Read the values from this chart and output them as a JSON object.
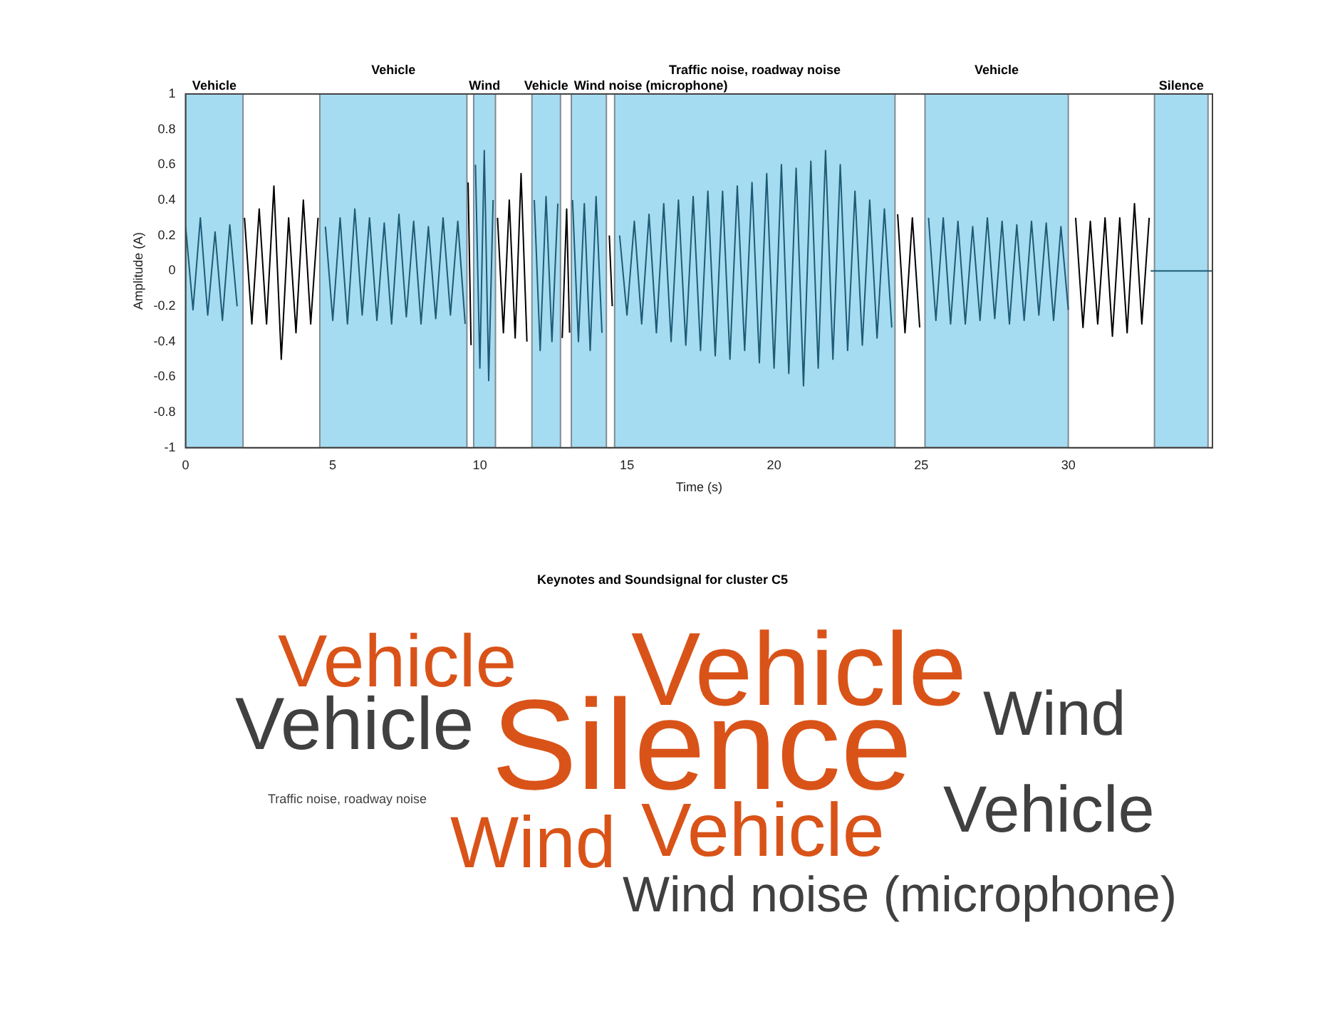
{
  "chart_data": [
    {
      "type": "line",
      "xlabel": "Time (s)",
      "ylabel": "Amplitude (A)",
      "xlim": [
        0,
        34.9
      ],
      "xticks": [
        0,
        5,
        10,
        15,
        20,
        25,
        30
      ],
      "ylim": [
        -1,
        1
      ],
      "yticks": [
        -1,
        -0.8,
        -0.6,
        -0.4,
        -0.2,
        0,
        0.2,
        0.4,
        0.6,
        0.8,
        1
      ],
      "grid": false,
      "legend": false,
      "marker": "none",
      "line_style": "solid",
      "bands": [
        {
          "axis": "x",
          "from": 0,
          "to": 1.95,
          "label": "Vehicle",
          "color": "#a6dcf2"
        },
        {
          "axis": "x",
          "from": 4.56,
          "to": 9.56,
          "label": "Vehicle",
          "color": "#a6dcf2"
        },
        {
          "axis": "x",
          "from": 9.79,
          "to": 10.53,
          "label": "Wind",
          "color": "#a6dcf2"
        },
        {
          "axis": "x",
          "from": 11.77,
          "to": 12.74,
          "label": "Vehicle",
          "color": "#a6dcf2"
        },
        {
          "axis": "x",
          "from": 13.11,
          "to": 14.3,
          "label": "Wind noise (microphone)",
          "color": "#a6dcf2"
        },
        {
          "axis": "x",
          "from": 14.58,
          "to": 24.11,
          "label": "Traffic noise, roadway noise",
          "color": "#a6dcf2"
        },
        {
          "axis": "x",
          "from": 25.13,
          "to": 30.0,
          "label": "Vehicle",
          "color": "#a6dcf2"
        },
        {
          "axis": "x",
          "from": 32.93,
          "to": 34.75,
          "label": "Silence",
          "color": "#a6dcf2"
        }
      ],
      "series": [
        {
          "color": "#1e5b74",
          "x": [
            0,
            0.25,
            0.5,
            0.75,
            1,
            1.25,
            1.5,
            1.75,
            1.9,
            4.75,
            5,
            5.25,
            5.5,
            5.75,
            6,
            6.25,
            6.5,
            6.75,
            7,
            7.25,
            7.5,
            7.75,
            8,
            8.25,
            8.5,
            8.75,
            9,
            9.25,
            9.5,
            9.6,
            9.85,
            10,
            10.15,
            10.3,
            10.45,
            10.5,
            11.85,
            12.05,
            12.25,
            12.45,
            12.65,
            12.7,
            13.15,
            13.35,
            13.55,
            13.75,
            13.95,
            14.15,
            14.2,
            14.75,
            15,
            15.25,
            15.5,
            15.75,
            16,
            16.25,
            16.5,
            16.75,
            17,
            17.25,
            17.5,
            17.75,
            18,
            18.25,
            18.5,
            18.75,
            19,
            19.25,
            19.5,
            19.75,
            20,
            20.25,
            20.5,
            20.75,
            21,
            21.25,
            21.5,
            21.75,
            22,
            22.25,
            22.5,
            22.75,
            23,
            23.25,
            23.5,
            23.75,
            24,
            24.05,
            25.25,
            25.5,
            25.75,
            26,
            26.25,
            26.5,
            26.75,
            27,
            27.25,
            27.5,
            27.75,
            28,
            28.25,
            28.5,
            28.75,
            29,
            29.25,
            29.5,
            29.75,
            30,
            30.1,
            32.8,
            34.9
          ],
          "values": [
            0.25,
            -0.22,
            0.3,
            -0.25,
            0.22,
            -0.28,
            0.26,
            -0.2,
            null,
            0.25,
            -0.28,
            0.3,
            -0.3,
            0.35,
            -0.25,
            0.3,
            -0.28,
            0.27,
            -0.3,
            0.32,
            -0.26,
            0.28,
            -0.3,
            0.25,
            -0.27,
            0.3,
            -0.25,
            0.28,
            -0.3,
            null,
            0.6,
            -0.55,
            0.68,
            -0.62,
            0.4,
            null,
            0.4,
            -0.45,
            0.42,
            -0.4,
            0.38,
            null,
            0.4,
            -0.4,
            0.38,
            -0.45,
            0.42,
            -0.35,
            null,
            0.2,
            -0.25,
            0.28,
            -0.3,
            0.32,
            -0.35,
            0.38,
            -0.4,
            0.4,
            -0.42,
            0.42,
            -0.45,
            0.45,
            -0.48,
            0.45,
            -0.5,
            0.48,
            -0.45,
            0.5,
            -0.52,
            0.55,
            -0.55,
            0.6,
            -0.58,
            0.58,
            -0.65,
            0.62,
            -0.55,
            0.68,
            -0.5,
            0.6,
            -0.45,
            0.45,
            -0.42,
            0.4,
            -0.38,
            0.35,
            -0.32,
            null,
            0.3,
            -0.28,
            0.3,
            -0.3,
            0.28,
            -0.3,
            0.25,
            -0.28,
            0.3,
            -0.27,
            0.28,
            -0.3,
            0.26,
            -0.28,
            0.28,
            -0.25,
            0.27,
            -0.28,
            0.25,
            -0.22,
            null,
            0,
            0
          ]
        },
        {
          "color": "#000000",
          "x": [
            2,
            2.25,
            2.5,
            2.75,
            3,
            3.25,
            3.5,
            3.75,
            4,
            4.25,
            4.5,
            4.6,
            9.6,
            9.7,
            9.75,
            10.6,
            10.8,
            11,
            11.2,
            11.4,
            11.6,
            11.7,
            12.8,
            12.95,
            13.05,
            13.1,
            14.4,
            14.5,
            14.55,
            24.2,
            24.45,
            24.7,
            24.95,
            25,
            30.25,
            30.5,
            30.75,
            31,
            31.25,
            31.5,
            31.75,
            32,
            32.25,
            32.5,
            32.75
          ],
          "values": [
            0.3,
            -0.3,
            0.35,
            -0.3,
            0.48,
            -0.5,
            0.3,
            -0.35,
            0.4,
            -0.3,
            0.3,
            null,
            0.5,
            -0.42,
            null,
            0.3,
            -0.35,
            0.4,
            -0.38,
            0.55,
            -0.4,
            null,
            -0.38,
            0.35,
            -0.35,
            null,
            0.2,
            -0.2,
            null,
            0.32,
            -0.35,
            0.3,
            -0.32,
            null,
            0.3,
            -0.32,
            0.28,
            -0.3,
            0.3,
            -0.37,
            0.3,
            -0.35,
            0.38,
            -0.3,
            0.3
          ]
        }
      ]
    },
    {
      "type": "other",
      "title": "Keynotes and Soundsignal for cluster C5",
      "annotations": [
        "Vehicle",
        "Vehicle",
        "Silence",
        "Vehicle",
        "Wind",
        "Traffic noise, roadway noise",
        "Wind",
        "Vehicle",
        "Vehicle",
        "Wind noise (microphone)"
      ]
    }
  ]
}
